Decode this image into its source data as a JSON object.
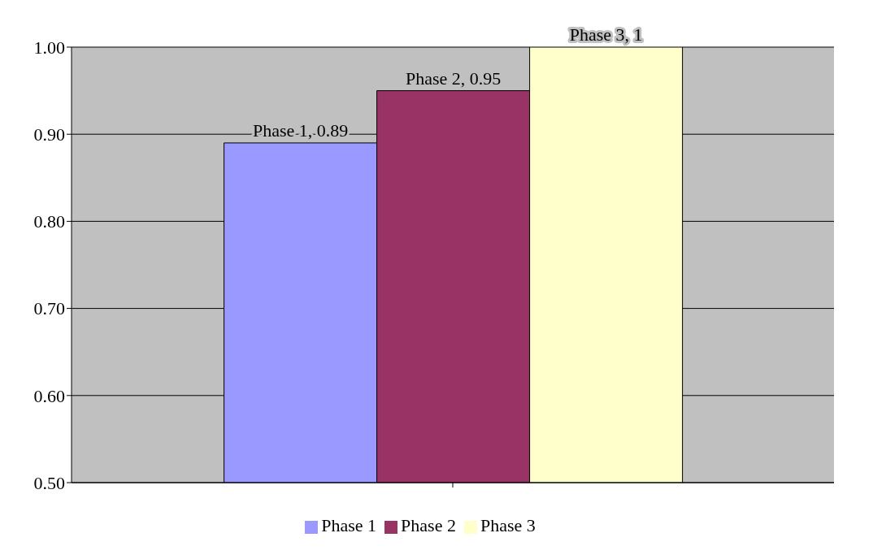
{
  "chart_data": {
    "type": "bar",
    "categories": [
      null
    ],
    "series": [
      {
        "name": "Phase 1",
        "color": "#9999ff",
        "values": [
          0.89
        ],
        "value_labels": [
          "Phase 1, 0.89"
        ]
      },
      {
        "name": "Phase 2",
        "color": "#993366",
        "values": [
          0.95
        ],
        "value_labels": [
          "Phase 2, 0.95"
        ]
      },
      {
        "name": "Phase 3",
        "color": "#ffffcc",
        "values": [
          1
        ],
        "value_labels": [
          "Phase 3, 1"
        ]
      }
    ],
    "ylim": [
      0.5,
      1.0
    ],
    "yticks": [
      {
        "value": 0.5,
        "label": "0.50"
      },
      {
        "value": 0.6,
        "label": "0.60"
      },
      {
        "value": 0.7,
        "label": "0.70"
      },
      {
        "value": 0.8,
        "label": "0.80"
      },
      {
        "value": 0.9,
        "label": "0.90"
      },
      {
        "value": 1.0,
        "label": "1.00"
      }
    ],
    "grid": "y",
    "legend": "bottom"
  }
}
